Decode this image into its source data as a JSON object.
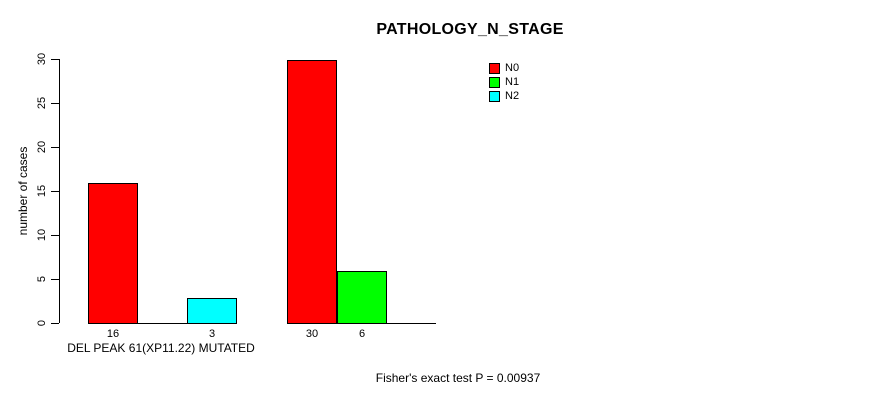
{
  "chart_data": {
    "type": "bar",
    "layout": "grouped",
    "title": "PATHOLOGY_N_STAGE",
    "xlabel": "DEL PEAK 61(XP11.22) MUTATED",
    "ylabel": "number of cases",
    "ylim": [
      0,
      30
    ],
    "yticks": [
      0,
      5,
      10,
      15,
      20,
      25,
      30
    ],
    "grid": false,
    "legend_position": "top-right",
    "legend": [
      {
        "label": "N0",
        "color": "#ff0000"
      },
      {
        "label": "N1",
        "color": "#00ff00"
      },
      {
        "label": "N2",
        "color": "#00ffff"
      }
    ],
    "categories": [
      "group-1",
      "group-2"
    ],
    "series": [
      {
        "name": "N0",
        "color": "#ff0000",
        "values": [
          16,
          30
        ]
      },
      {
        "name": "N1",
        "color": "#00ff00",
        "values": [
          0,
          6
        ]
      },
      {
        "name": "N2",
        "color": "#00ffff",
        "values": [
          3,
          0
        ]
      }
    ],
    "bar_value_labels": [
      "16",
      "3",
      "30",
      "6"
    ],
    "annotation": "Fisher's exact test P = 0.00937",
    "axis_color": "#000000",
    "background_color": "#ffffff"
  }
}
